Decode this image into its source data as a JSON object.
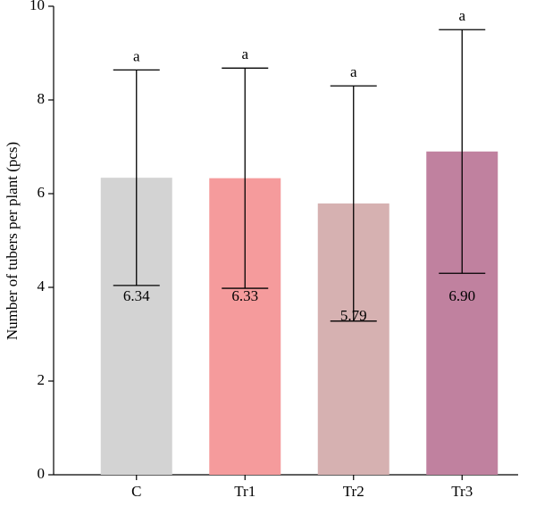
{
  "chart_data": {
    "type": "bar",
    "ylabel": "Number of tubers per plant (pcs)",
    "categories": [
      "C",
      "Tr1",
      "Tr2",
      "Tr3"
    ],
    "values": [
      6.34,
      6.33,
      5.79,
      6.9
    ],
    "value_labels": [
      "6.34",
      "6.33",
      "5.79",
      "6.90"
    ],
    "errors": [
      2.3,
      2.35,
      2.51,
      2.6
    ],
    "letters": [
      "a",
      "a",
      "a",
      "a"
    ],
    "colors": [
      "#d3d3d3",
      "#f59b9c",
      "#d6b1b1",
      "#c0819f"
    ],
    "ylim": [
      0,
      10
    ],
    "yticks": [
      0,
      2,
      4,
      6,
      8,
      10
    ]
  }
}
